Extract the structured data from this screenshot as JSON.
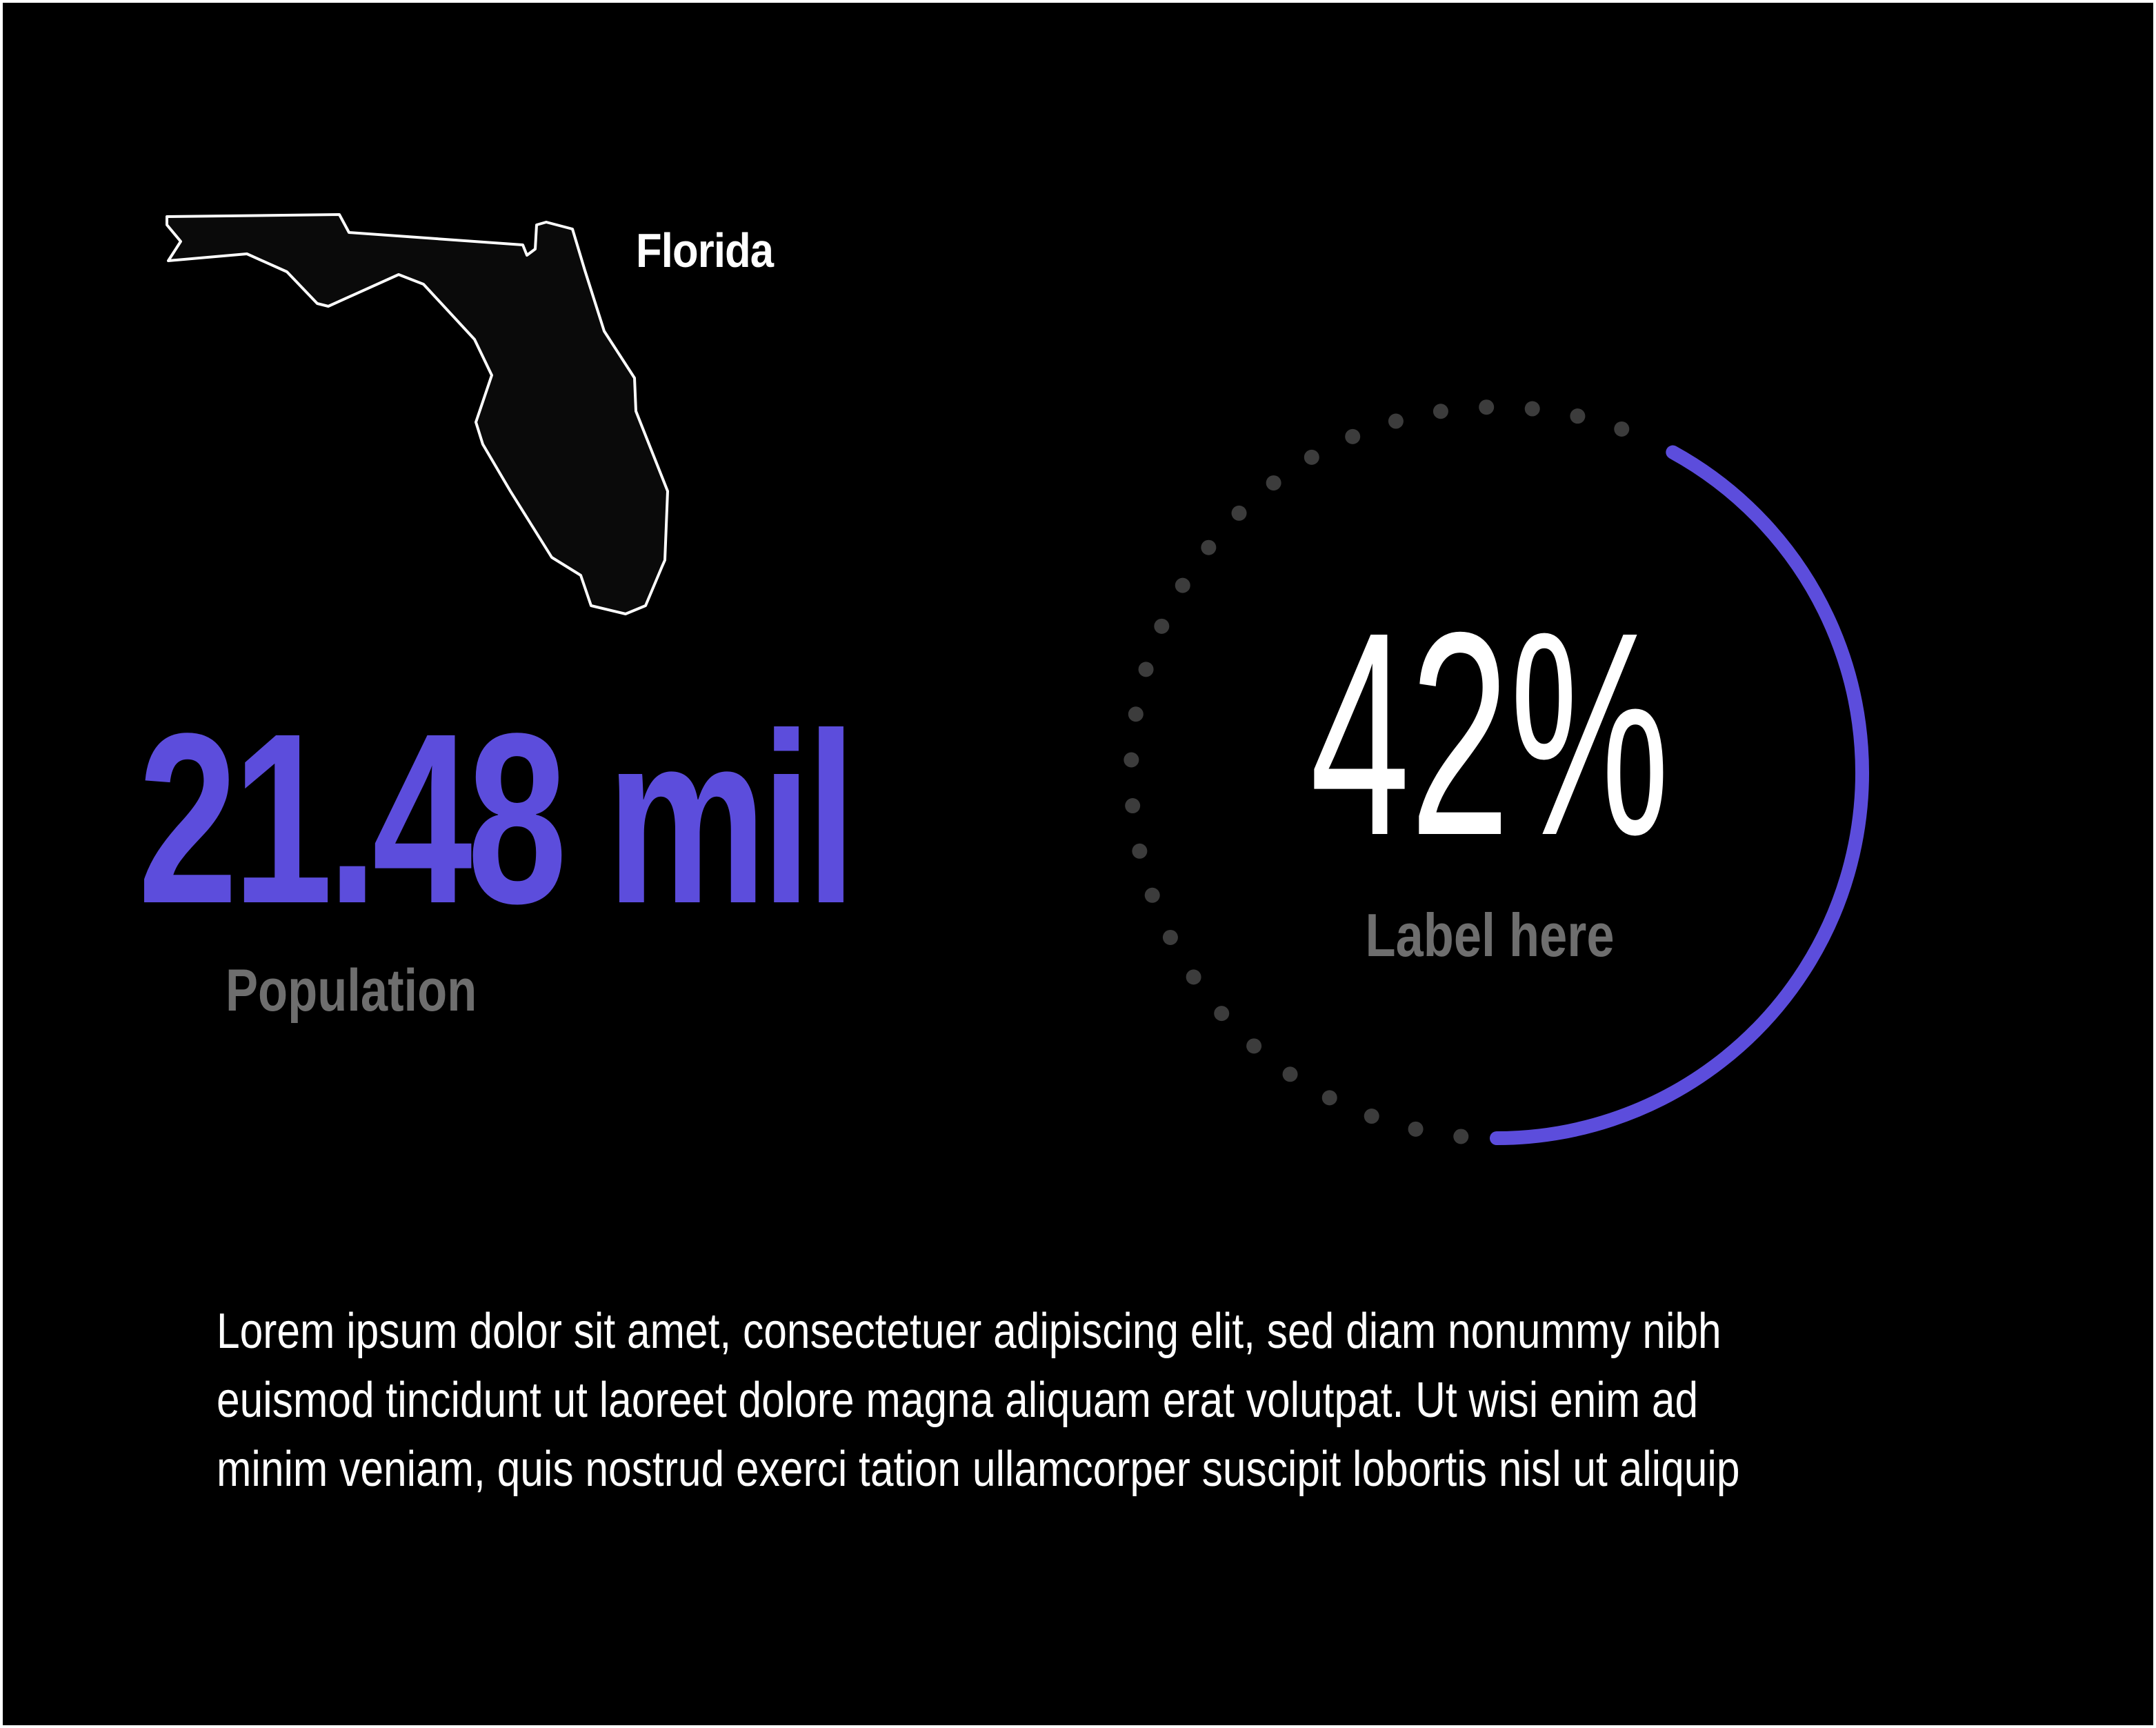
{
  "state": {
    "name": "Florida",
    "map_icon": "florida-outline-icon"
  },
  "population": {
    "value": "21.48 mil",
    "label": "Population"
  },
  "gauge": {
    "value_text": "42%",
    "percent": 42,
    "label": "Label here"
  },
  "description": {
    "lines": [
      "Lorem ipsum dolor sit amet, consectetuer adipiscing elit, sed diam nonummy nibh",
      "euismod tincidunt ut laoreet dolore magna aliquam erat volutpat. Ut wisi enim ad",
      "minim veniam, quis nostrud exerci tation ullamcorper suscipit lobortis nisl ut aliquip"
    ]
  },
  "colors": {
    "background": "#000000",
    "accent": "#5c4ddc",
    "muted_label": "#6e6e6e",
    "dots": "#3c3c3c",
    "text": "#ffffff"
  }
}
